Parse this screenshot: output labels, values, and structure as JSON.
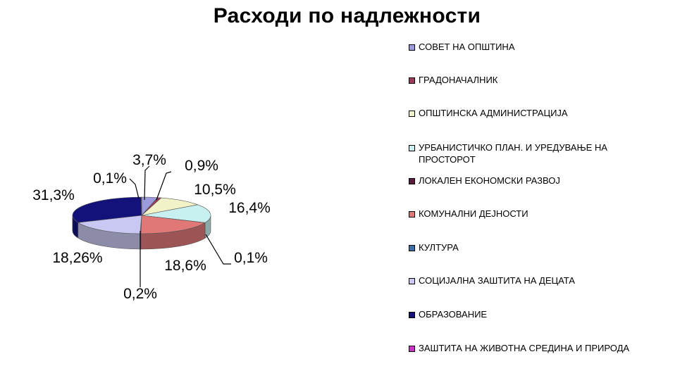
{
  "chart_data": {
    "type": "pie",
    "title": "Расходи по надлежности",
    "slices": [
      {
        "name": "СОВЕТ НА ОПШТИНА",
        "value": 3.7,
        "label": "3,7%",
        "color": "#9a9adc"
      },
      {
        "name": "ГРАДОНАЧАЛНИК",
        "value": 0.9,
        "label": "0,9%",
        "color": "#9a3d5a"
      },
      {
        "name": "ОПШТИНСКА АДМИНИСТРАЦИЈА",
        "value": 10.5,
        "label": "10,5%",
        "color": "#f2f2c8"
      },
      {
        "name": "УРБАНИСТИЧКО ПЛАН. И УРЕДУВАЊЕ НА ПРОСТОРОТ",
        "value": 16.4,
        "label": "16,4%",
        "color": "#c8f0f0"
      },
      {
        "name": "ЛОКАЛЕН ЕКОНОМСКИ РАЗВОЈ",
        "value": 0.1,
        "label": "0,1%",
        "color": "#5c1a3c"
      },
      {
        "name": "КОМУНАЛНИ ДЕЈНОСТИ",
        "value": 18.6,
        "label": "18,6%",
        "color": "#e07878"
      },
      {
        "name": "КУЛТУРА",
        "value": 0.2,
        "label": "0,2%",
        "color": "#3a6fa8"
      },
      {
        "name": "СОЦИЈАЛНА ЗАШТИТА НА ДЕЦАТА",
        "value": 18.26,
        "label": "18,26%",
        "color": "#c8c8f2"
      },
      {
        "name": "ОБРАЗОВАНИЕ",
        "value": 31.3,
        "label": "31,3%",
        "color": "#12127a"
      },
      {
        "name": "ЗАШТИТА НА ЖИВОТНА СРЕДИНА И ПРИРОДА",
        "value": 0.1,
        "label": "0,1%",
        "color": "#cc33cc"
      }
    ],
    "legend_position": "right"
  }
}
